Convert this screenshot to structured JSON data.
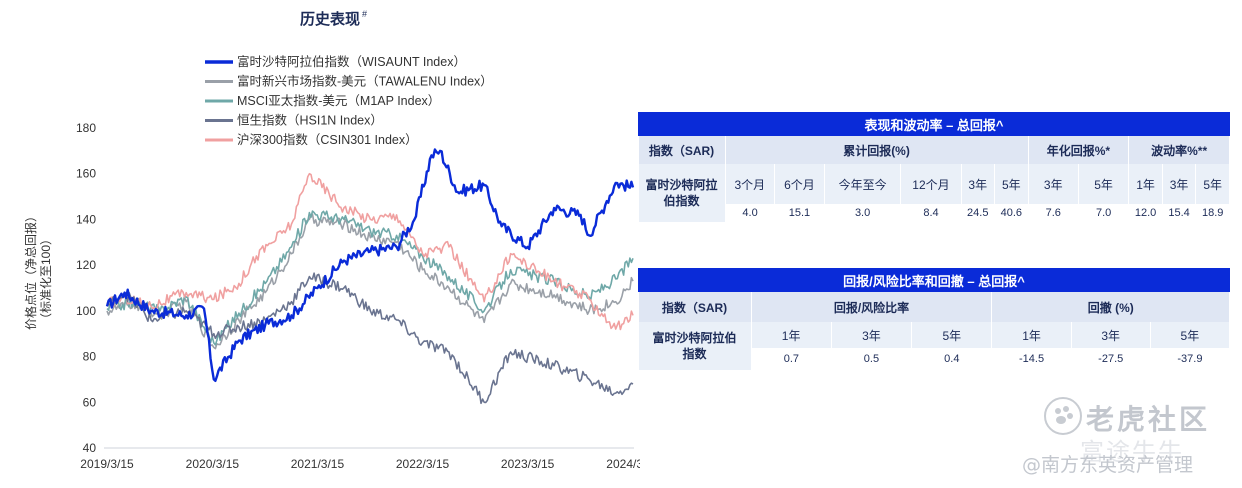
{
  "chart_data": {
    "type": "line",
    "title": "历史表现",
    "title_mark": "#",
    "ylabel_lines": [
      "价格点位（净总回报）",
      "（标准化至100）"
    ],
    "ylim": [
      40,
      180
    ],
    "yticks": [
      40,
      60,
      80,
      100,
      120,
      140,
      160,
      180
    ],
    "xlim": [
      "2019/3/15",
      "2024/3/15"
    ],
    "xticks": [
      "2019/3/15",
      "2020/3/15",
      "2021/3/15",
      "2022/3/15",
      "2023/3/15",
      "2024/3/15"
    ],
    "legend_position": "top",
    "series": [
      {
        "name": "富时沙特阿拉伯指数（WISAUNT Index）",
        "color": "#0a2bd8",
        "x": [
          "2019/3/15",
          "2019/5/15",
          "2019/8/15",
          "2019/12/15",
          "2020/2/15",
          "2020/3/20",
          "2020/6/15",
          "2020/9/15",
          "2020/12/15",
          "2021/3/15",
          "2021/6/15",
          "2021/9/15",
          "2021/12/15",
          "2022/2/15",
          "2022/4/15",
          "2022/5/15",
          "2022/7/15",
          "2022/10/15",
          "2022/12/15",
          "2023/3/15",
          "2023/6/15",
          "2023/9/15",
          "2023/10/15",
          "2023/12/15",
          "2024/1/15",
          "2024/3/15"
        ],
        "y": [
          102,
          108,
          100,
          98,
          101,
          70,
          87,
          94,
          98,
          110,
          122,
          126,
          128,
          140,
          168,
          170,
          152,
          155,
          137,
          128,
          145,
          142,
          133,
          148,
          156,
          154
        ]
      },
      {
        "name": "富时新兴市场指数-美元（TAWALENU Index）",
        "color": "#9aa0a8",
        "x": [
          "2019/3/15",
          "2019/6/15",
          "2019/9/15",
          "2019/12/15",
          "2020/3/20",
          "2020/6/15",
          "2020/9/15",
          "2020/12/15",
          "2021/2/15",
          "2021/6/15",
          "2021/9/15",
          "2021/12/15",
          "2022/3/15",
          "2022/6/15",
          "2022/10/15",
          "2023/1/15",
          "2023/6/15",
          "2023/10/15",
          "2024/1/15",
          "2024/3/15"
        ],
        "y": [
          100,
          103,
          98,
          104,
          84,
          96,
          108,
          125,
          140,
          138,
          132,
          130,
          118,
          110,
          95,
          112,
          107,
          100,
          104,
          113
        ]
      },
      {
        "name": "MSCI亚太指数-美元（M1AP Index）",
        "color": "#6fa8a8",
        "x": [
          "2019/3/15",
          "2019/6/15",
          "2019/9/15",
          "2019/12/15",
          "2020/3/20",
          "2020/6/15",
          "2020/9/15",
          "2020/12/15",
          "2021/2/15",
          "2021/6/15",
          "2021/9/15",
          "2021/12/15",
          "2022/3/15",
          "2022/6/15",
          "2022/10/15",
          "2023/1/15",
          "2023/6/15",
          "2023/10/15",
          "2024/1/15",
          "2024/3/15"
        ],
        "y": [
          101,
          104,
          100,
          106,
          86,
          99,
          112,
          128,
          143,
          140,
          135,
          133,
          124,
          115,
          100,
          118,
          113,
          106,
          114,
          123
        ]
      },
      {
        "name": "恒生指数（HSI1N Index）",
        "color": "#6a7490",
        "x": [
          "2019/3/15",
          "2019/5/15",
          "2019/8/15",
          "2019/12/15",
          "2020/3/20",
          "2020/6/15",
          "2020/9/15",
          "2020/12/15",
          "2021/2/15",
          "2021/6/15",
          "2021/9/15",
          "2021/12/15",
          "2022/3/15",
          "2022/6/15",
          "2022/10/15",
          "2023/1/15",
          "2023/6/15",
          "2023/10/15",
          "2024/1/15",
          "2024/3/15"
        ],
        "y": [
          102,
          108,
          96,
          100,
          90,
          93,
          96,
          104,
          115,
          110,
          100,
          96,
          86,
          82,
          60,
          82,
          76,
          70,
          64,
          68
        ]
      },
      {
        "name": "沪深300指数（CSIN301 Index）",
        "color": "#f0a0a0",
        "x": [
          "2019/3/15",
          "2019/5/15",
          "2019/8/15",
          "2019/12/15",
          "2020/3/20",
          "2020/6/15",
          "2020/8/15",
          "2020/12/15",
          "2021/2/15",
          "2021/6/15",
          "2021/9/15",
          "2021/12/15",
          "2022/3/15",
          "2022/6/15",
          "2022/10/15",
          "2023/1/15",
          "2023/6/15",
          "2023/10/15",
          "2024/1/15",
          "2024/3/15"
        ],
        "y": [
          103,
          106,
          102,
          108,
          105,
          112,
          124,
          138,
          160,
          145,
          140,
          142,
          125,
          128,
          104,
          125,
          113,
          105,
          92,
          98
        ]
      }
    ]
  },
  "table1": {
    "title": "表现和波动率 – 总回报^",
    "index_label": "指数（SAR)",
    "group_cumulative": "累计回报(%)",
    "group_annualized": "年化回报%*",
    "group_volatility": "波动率%**",
    "row_label": "富时沙特阿拉伯指数",
    "periods": [
      "3个月",
      "6个月",
      "今年至今",
      "12个月",
      "3年",
      "5年",
      "3年",
      "5年",
      "1年",
      "3年",
      "5年"
    ],
    "values": [
      "4.0",
      "15.1",
      "3.0",
      "8.4",
      "24.5",
      "40.6",
      "7.6",
      "7.0",
      "12.0",
      "15.4",
      "18.9"
    ]
  },
  "table2": {
    "title": "回报/风险比率和回撤 – 总回报^",
    "index_label": "指数（SAR)",
    "group_ratio": "回报/风险比率",
    "group_drawdown": "回撤 (%)",
    "row_label": "富时沙特阿拉伯指数",
    "periods": [
      "1年",
      "3年",
      "5年",
      "1年",
      "3年",
      "5年"
    ],
    "values": [
      "0.7",
      "0.5",
      "0.4",
      "-14.5",
      "-27.5",
      "-37.9"
    ]
  },
  "watermark": {
    "community": "老虎社区",
    "community_shadow": "富途牛牛",
    "author": "@南方东英资产管理"
  }
}
